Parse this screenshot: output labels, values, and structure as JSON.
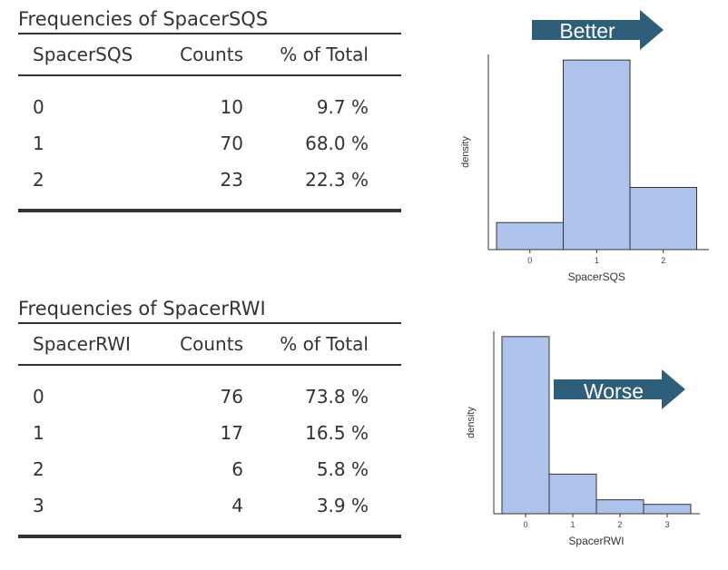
{
  "tables": [
    {
      "title": "Frequencies of SpacerSQS",
      "headers": [
        "SpacerSQS",
        "Counts",
        "% of Total"
      ],
      "rows": [
        [
          "0",
          "10",
          "9.7 %"
        ],
        [
          "1",
          "70",
          "68.0 %"
        ],
        [
          "2",
          "23",
          "22.3 %"
        ]
      ]
    },
    {
      "title": "Frequencies of SpacerRWI",
      "headers": [
        "SpacerRWI",
        "Counts",
        "% of Total"
      ],
      "rows": [
        [
          "0",
          "76",
          "73.8 %"
        ],
        [
          "1",
          "17",
          "16.5 %"
        ],
        [
          "2",
          "6",
          "5.8 %"
        ],
        [
          "3",
          "4",
          "3.9 %"
        ]
      ]
    }
  ],
  "chart_data": [
    {
      "type": "bar",
      "categories": [
        "0",
        "1",
        "2"
      ],
      "values": [
        0.097,
        0.68,
        0.223
      ],
      "xlabel": "SpacerSQS",
      "ylabel": "density",
      "ylim": [
        0,
        0.7
      ],
      "xticks": [
        "0",
        "1",
        "2"
      ],
      "annotation": "Better",
      "bar_color": "#aec3eb",
      "annotation_color": "#2d5f7a",
      "grid": false
    },
    {
      "type": "bar",
      "categories": [
        "0",
        "1",
        "2",
        "3"
      ],
      "values": [
        0.738,
        0.165,
        0.058,
        0.039
      ],
      "xlabel": "SpacerRWI",
      "ylabel": "density",
      "ylim": [
        0,
        0.76
      ],
      "xticks": [
        "0",
        "1",
        "2",
        "3"
      ],
      "annotation": "Worse",
      "bar_color": "#aec3eb",
      "annotation_color": "#2d5f7a",
      "grid": false
    }
  ]
}
